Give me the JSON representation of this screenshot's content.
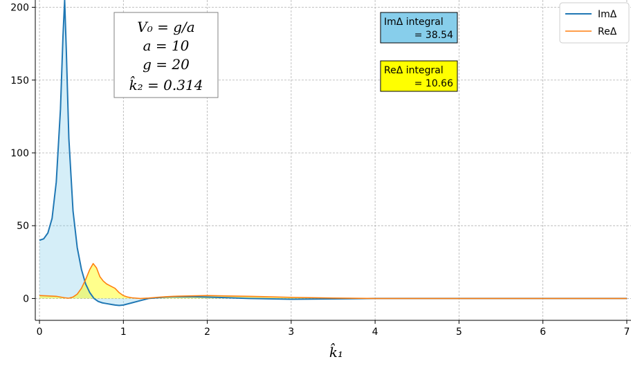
{
  "chart_data": {
    "type": "area",
    "xlabel": "k̂₁",
    "ylabel": "",
    "xlim": [
      -0.05,
      7.05
    ],
    "ylim": [
      -15,
      205
    ],
    "xticks": [
      0,
      1,
      2,
      3,
      4,
      5,
      6,
      7
    ],
    "yticks": [
      0,
      50,
      100,
      150,
      200
    ],
    "grid": true,
    "legend": "top-right",
    "series": [
      {
        "name": "ImΔ",
        "color": "#1f77b4",
        "fill": "#87ceeb",
        "x": [
          0.0,
          0.05,
          0.1,
          0.15,
          0.2,
          0.25,
          0.28,
          0.3,
          0.32,
          0.35,
          0.4,
          0.45,
          0.5,
          0.55,
          0.6,
          0.65,
          0.7,
          0.75,
          0.8,
          0.85,
          0.9,
          0.95,
          1.0,
          1.1,
          1.2,
          1.3,
          1.4,
          1.5,
          1.6,
          1.8,
          2.0,
          2.2,
          2.5,
          3.0,
          3.5,
          4.0,
          5.0,
          6.0,
          7.0
        ],
        "values": [
          40,
          41,
          45,
          55,
          80,
          130,
          180,
          205,
          170,
          110,
          60,
          35,
          20,
          10,
          4,
          0,
          -2,
          -3,
          -3.5,
          -4,
          -4.5,
          -4.8,
          -4.5,
          -3,
          -1.5,
          0,
          0.5,
          1,
          1.2,
          1.3,
          1,
          0.6,
          0,
          -0.5,
          -0.3,
          0,
          0,
          0,
          0
        ]
      },
      {
        "name": "ReΔ",
        "color": "#ff7f0e",
        "fill": "#ffff00",
        "x": [
          0.0,
          0.1,
          0.2,
          0.3,
          0.35,
          0.4,
          0.45,
          0.5,
          0.55,
          0.6,
          0.64,
          0.68,
          0.72,
          0.76,
          0.8,
          0.85,
          0.9,
          0.95,
          1.0,
          1.05,
          1.1,
          1.2,
          1.3,
          1.4,
          1.5,
          1.6,
          1.8,
          2.0,
          2.2,
          2.5,
          3.0,
          3.5,
          4.0,
          5.0,
          6.0,
          7.0
        ],
        "values": [
          2,
          1.8,
          1.5,
          0.5,
          0.2,
          1,
          3,
          7,
          13,
          20,
          24,
          21,
          15,
          12,
          10,
          8.5,
          7,
          4,
          2,
          1,
          0.5,
          0,
          0.3,
          0.8,
          1.2,
          1.5,
          1.8,
          2,
          1.8,
          1.5,
          0.8,
          0.3,
          0,
          0,
          0,
          0
        ]
      }
    ],
    "annotations": {
      "params_lines": [
        "V₀ = g/a",
        "a = 10",
        "g = 20",
        "k̂₂ = 0.314"
      ],
      "im_integral": [
        "ImΔ integral",
        "= 38.54"
      ],
      "re_integral": [
        "ReΔ integral",
        "= 10.66"
      ],
      "im_box_color": "#87ceeb",
      "re_box_color": "#ffff00"
    },
    "overlap_fill_color": "#c5e6a6"
  }
}
